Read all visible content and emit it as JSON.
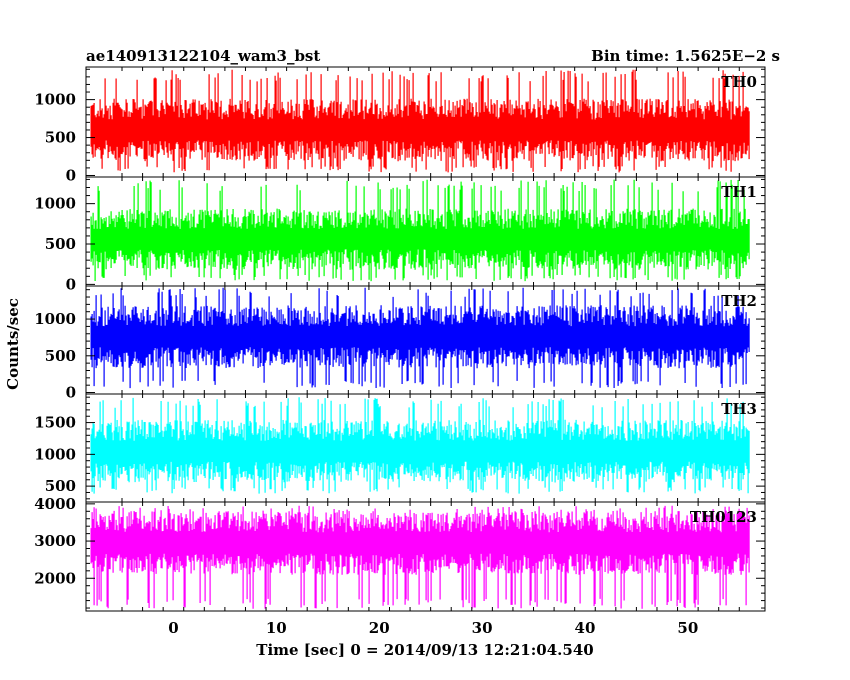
{
  "chart_data": {
    "type": "line",
    "title_left": "ae140913122104_wam3_bst",
    "title_right": "Bin time: 1.5625E−2 s",
    "xlabel": "Time [sec] 0 = 2014/09/13 12:21:04.540",
    "ylabel": "Counts/sec",
    "xlim": [
      -8.5,
      57.5
    ],
    "data_x_range": [
      -8,
      56
    ],
    "x_ticks": [
      0,
      10,
      20,
      30,
      40,
      50
    ],
    "x_tick_labels": [
      "0",
      "10",
      "20",
      "30",
      "40",
      "50"
    ],
    "grid": false,
    "panels": [
      {
        "name": "TH0",
        "color": "#ff0000",
        "ylim": [
          -20,
          1430
        ],
        "ticks": [
          0,
          500,
          1000
        ],
        "tick_labels": [
          "0",
          "500",
          "1000"
        ],
        "band": {
          "mean": 600,
          "spread": 250,
          "low_excursion": 40,
          "high_excursion": 1400
        }
      },
      {
        "name": "TH1",
        "color": "#00ff00",
        "ylim": [
          -20,
          1330
        ],
        "ticks": [
          0,
          500,
          1000
        ],
        "tick_labels": [
          "0",
          "500",
          "1000"
        ],
        "band": {
          "mean": 560,
          "spread": 230,
          "low_excursion": 40,
          "high_excursion": 1300
        }
      },
      {
        "name": "TH2",
        "color": "#0000ff",
        "ylim": [
          -20,
          1450
        ],
        "ticks": [
          0,
          500,
          1000
        ],
        "tick_labels": [
          "0",
          "500",
          "1000"
        ],
        "band": {
          "mean": 760,
          "spread": 260,
          "low_excursion": 60,
          "high_excursion": 1430
        }
      },
      {
        "name": "TH3",
        "color": "#00ffff",
        "ylim": [
          250,
          1950
        ],
        "ticks": [
          500,
          1000,
          1500
        ],
        "tick_labels": [
          "500",
          "1000",
          "1500"
        ],
        "band": {
          "mean": 1050,
          "spread": 300,
          "low_excursion": 380,
          "high_excursion": 1900
        }
      },
      {
        "name": "TH0123",
        "color": "#ff00ff",
        "ylim": [
          1120,
          4050
        ],
        "ticks": [
          2000,
          3000,
          4000
        ],
        "tick_labels": [
          "2000",
          "3000",
          "4000"
        ],
        "band": {
          "mean": 2950,
          "spread": 520,
          "low_excursion": 1180,
          "high_excursion": 3950
        }
      }
    ]
  }
}
